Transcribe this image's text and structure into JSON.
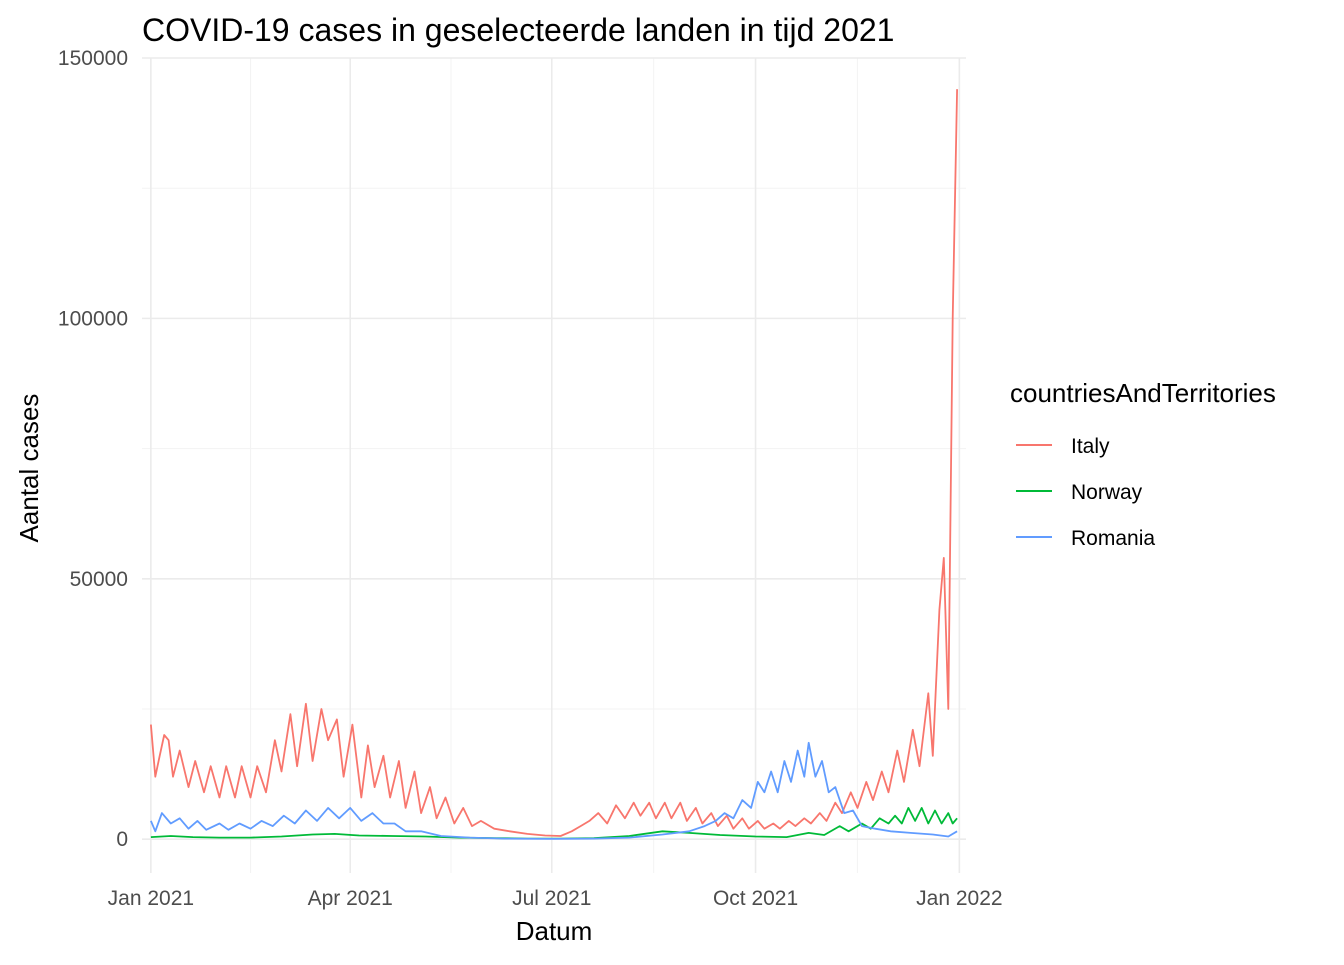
{
  "chart_data": {
    "type": "line",
    "title": "COVID-19 cases in geselecteerde landen in tijd 2021",
    "xlabel": "Datum",
    "ylabel": "Aantal cases",
    "xlim": [
      "2020-12-28",
      "2022-01-04"
    ],
    "ylim": [
      -6500,
      150000
    ],
    "x_ticks": [
      {
        "date": "2021-01-01",
        "label": "Jan 2021"
      },
      {
        "date": "2021-04-01",
        "label": "Apr 2021"
      },
      {
        "date": "2021-07-01",
        "label": "Jul 2021"
      },
      {
        "date": "2021-10-01",
        "label": "Oct 2021"
      },
      {
        "date": "2022-01-01",
        "label": "Jan 2022"
      }
    ],
    "y_ticks": [
      {
        "value": 0,
        "label": "0"
      },
      {
        "value": 50000,
        "label": "50000"
      },
      {
        "value": 100000,
        "label": "100000"
      },
      {
        "value": 150000,
        "label": "150000"
      }
    ],
    "grid": true,
    "legend": {
      "title": "countriesAndTerritories",
      "position": "right"
    },
    "series": [
      {
        "name": "Italy",
        "color": "#F8766D",
        "points": [
          [
            "2021-01-01",
            22000
          ],
          [
            "2021-01-03",
            12000
          ],
          [
            "2021-01-05",
            16000
          ],
          [
            "2021-01-07",
            20000
          ],
          [
            "2021-01-09",
            19000
          ],
          [
            "2021-01-11",
            12000
          ],
          [
            "2021-01-14",
            17000
          ],
          [
            "2021-01-18",
            10000
          ],
          [
            "2021-01-21",
            15000
          ],
          [
            "2021-01-25",
            9000
          ],
          [
            "2021-01-28",
            14000
          ],
          [
            "2021-02-01",
            8000
          ],
          [
            "2021-02-04",
            14000
          ],
          [
            "2021-02-08",
            8000
          ],
          [
            "2021-02-11",
            14000
          ],
          [
            "2021-02-15",
            8000
          ],
          [
            "2021-02-18",
            14000
          ],
          [
            "2021-02-22",
            9000
          ],
          [
            "2021-02-26",
            19000
          ],
          [
            "2021-03-01",
            13000
          ],
          [
            "2021-03-05",
            24000
          ],
          [
            "2021-03-08",
            14000
          ],
          [
            "2021-03-12",
            26000
          ],
          [
            "2021-03-15",
            15000
          ],
          [
            "2021-03-19",
            25000
          ],
          [
            "2021-03-22",
            19000
          ],
          [
            "2021-03-26",
            23000
          ],
          [
            "2021-03-29",
            12000
          ],
          [
            "2021-04-02",
            22000
          ],
          [
            "2021-04-06",
            8000
          ],
          [
            "2021-04-09",
            18000
          ],
          [
            "2021-04-12",
            10000
          ],
          [
            "2021-04-16",
            16000
          ],
          [
            "2021-04-19",
            8000
          ],
          [
            "2021-04-23",
            15000
          ],
          [
            "2021-04-26",
            6000
          ],
          [
            "2021-04-30",
            13000
          ],
          [
            "2021-05-03",
            5000
          ],
          [
            "2021-05-07",
            10000
          ],
          [
            "2021-05-10",
            4000
          ],
          [
            "2021-05-14",
            8000
          ],
          [
            "2021-05-18",
            3000
          ],
          [
            "2021-05-22",
            6000
          ],
          [
            "2021-05-26",
            2500
          ],
          [
            "2021-05-30",
            3500
          ],
          [
            "2021-06-05",
            2000
          ],
          [
            "2021-06-12",
            1500
          ],
          [
            "2021-06-20",
            1000
          ],
          [
            "2021-06-28",
            700
          ],
          [
            "2021-07-05",
            600
          ],
          [
            "2021-07-10",
            1500
          ],
          [
            "2021-07-14",
            2500
          ],
          [
            "2021-07-18",
            3500
          ],
          [
            "2021-07-22",
            5000
          ],
          [
            "2021-07-26",
            3000
          ],
          [
            "2021-07-30",
            6500
          ],
          [
            "2021-08-03",
            4000
          ],
          [
            "2021-08-07",
            7000
          ],
          [
            "2021-08-10",
            4500
          ],
          [
            "2021-08-14",
            7000
          ],
          [
            "2021-08-17",
            4000
          ],
          [
            "2021-08-21",
            7000
          ],
          [
            "2021-08-24",
            4000
          ],
          [
            "2021-08-28",
            7000
          ],
          [
            "2021-08-31",
            3500
          ],
          [
            "2021-09-04",
            6000
          ],
          [
            "2021-09-07",
            3000
          ],
          [
            "2021-09-11",
            5000
          ],
          [
            "2021-09-14",
            2500
          ],
          [
            "2021-09-18",
            4500
          ],
          [
            "2021-09-21",
            2000
          ],
          [
            "2021-09-25",
            4000
          ],
          [
            "2021-09-28",
            2000
          ],
          [
            "2021-10-02",
            3500
          ],
          [
            "2021-10-05",
            2000
          ],
          [
            "2021-10-09",
            3000
          ],
          [
            "2021-10-12",
            2000
          ],
          [
            "2021-10-16",
            3500
          ],
          [
            "2021-10-19",
            2500
          ],
          [
            "2021-10-23",
            4000
          ],
          [
            "2021-10-26",
            3000
          ],
          [
            "2021-10-30",
            5000
          ],
          [
            "2021-11-02",
            3500
          ],
          [
            "2021-11-06",
            7000
          ],
          [
            "2021-11-09",
            5000
          ],
          [
            "2021-11-13",
            9000
          ],
          [
            "2021-11-16",
            6000
          ],
          [
            "2021-11-20",
            11000
          ],
          [
            "2021-11-23",
            7500
          ],
          [
            "2021-11-27",
            13000
          ],
          [
            "2021-11-30",
            9000
          ],
          [
            "2021-12-04",
            17000
          ],
          [
            "2021-12-07",
            11000
          ],
          [
            "2021-12-11",
            21000
          ],
          [
            "2021-12-14",
            14000
          ],
          [
            "2021-12-18",
            28000
          ],
          [
            "2021-12-20",
            16000
          ],
          [
            "2021-12-23",
            44000
          ],
          [
            "2021-12-25",
            54000
          ],
          [
            "2021-12-27",
            25000
          ],
          [
            "2021-12-29",
            100000
          ],
          [
            "2021-12-31",
            144000
          ]
        ]
      },
      {
        "name": "Norway",
        "color": "#00BA38",
        "points": [
          [
            "2021-01-01",
            400
          ],
          [
            "2021-01-10",
            600
          ],
          [
            "2021-01-20",
            400
          ],
          [
            "2021-02-01",
            300
          ],
          [
            "2021-02-15",
            300
          ],
          [
            "2021-03-01",
            500
          ],
          [
            "2021-03-15",
            900
          ],
          [
            "2021-03-25",
            1000
          ],
          [
            "2021-04-05",
            700
          ],
          [
            "2021-04-20",
            600
          ],
          [
            "2021-05-05",
            500
          ],
          [
            "2021-05-20",
            300
          ],
          [
            "2021-06-05",
            200
          ],
          [
            "2021-06-20",
            100
          ],
          [
            "2021-07-05",
            100
          ],
          [
            "2021-07-20",
            200
          ],
          [
            "2021-08-05",
            600
          ],
          [
            "2021-08-20",
            1500
          ],
          [
            "2021-09-01",
            1200
          ],
          [
            "2021-09-15",
            800
          ],
          [
            "2021-10-01",
            500
          ],
          [
            "2021-10-15",
            400
          ],
          [
            "2021-10-25",
            1200
          ],
          [
            "2021-11-01",
            800
          ],
          [
            "2021-11-08",
            2500
          ],
          [
            "2021-11-12",
            1500
          ],
          [
            "2021-11-18",
            3000
          ],
          [
            "2021-11-22",
            2000
          ],
          [
            "2021-11-26",
            4000
          ],
          [
            "2021-11-30",
            3000
          ],
          [
            "2021-12-03",
            4500
          ],
          [
            "2021-12-06",
            3000
          ],
          [
            "2021-12-09",
            6000
          ],
          [
            "2021-12-12",
            3500
          ],
          [
            "2021-12-15",
            6000
          ],
          [
            "2021-12-18",
            3000
          ],
          [
            "2021-12-21",
            5500
          ],
          [
            "2021-12-24",
            3000
          ],
          [
            "2021-12-27",
            5000
          ],
          [
            "2021-12-29",
            3000
          ],
          [
            "2021-12-31",
            4000
          ]
        ]
      },
      {
        "name": "Romania",
        "color": "#619CFF",
        "points": [
          [
            "2021-01-01",
            3500
          ],
          [
            "2021-01-03",
            1500
          ],
          [
            "2021-01-06",
            5000
          ],
          [
            "2021-01-10",
            3000
          ],
          [
            "2021-01-14",
            4000
          ],
          [
            "2021-01-18",
            2000
          ],
          [
            "2021-01-22",
            3500
          ],
          [
            "2021-01-26",
            1800
          ],
          [
            "2021-02-01",
            3000
          ],
          [
            "2021-02-05",
            1800
          ],
          [
            "2021-02-10",
            3000
          ],
          [
            "2021-02-15",
            2000
          ],
          [
            "2021-02-20",
            3500
          ],
          [
            "2021-02-25",
            2500
          ],
          [
            "2021-03-02",
            4500
          ],
          [
            "2021-03-07",
            3000
          ],
          [
            "2021-03-12",
            5500
          ],
          [
            "2021-03-17",
            3500
          ],
          [
            "2021-03-22",
            6000
          ],
          [
            "2021-03-27",
            4000
          ],
          [
            "2021-04-01",
            6000
          ],
          [
            "2021-04-06",
            3500
          ],
          [
            "2021-04-11",
            5000
          ],
          [
            "2021-04-16",
            3000
          ],
          [
            "2021-04-21",
            3000
          ],
          [
            "2021-04-26",
            1500
          ],
          [
            "2021-05-03",
            1500
          ],
          [
            "2021-05-12",
            600
          ],
          [
            "2021-05-25",
            300
          ],
          [
            "2021-06-10",
            100
          ],
          [
            "2021-07-01",
            50
          ],
          [
            "2021-07-20",
            100
          ],
          [
            "2021-08-05",
            300
          ],
          [
            "2021-08-20",
            900
          ],
          [
            "2021-09-01",
            1500
          ],
          [
            "2021-09-08",
            2500
          ],
          [
            "2021-09-13",
            3500
          ],
          [
            "2021-09-17",
            5000
          ],
          [
            "2021-09-21",
            4000
          ],
          [
            "2021-09-25",
            7500
          ],
          [
            "2021-09-29",
            6000
          ],
          [
            "2021-10-02",
            11000
          ],
          [
            "2021-10-05",
            9000
          ],
          [
            "2021-10-08",
            13000
          ],
          [
            "2021-10-11",
            9000
          ],
          [
            "2021-10-14",
            15000
          ],
          [
            "2021-10-17",
            11000
          ],
          [
            "2021-10-20",
            17000
          ],
          [
            "2021-10-23",
            12000
          ],
          [
            "2021-10-25",
            18500
          ],
          [
            "2021-10-28",
            12000
          ],
          [
            "2021-10-31",
            15000
          ],
          [
            "2021-11-03",
            9000
          ],
          [
            "2021-11-06",
            10000
          ],
          [
            "2021-11-10",
            5000
          ],
          [
            "2021-11-14",
            5500
          ],
          [
            "2021-11-18",
            2500
          ],
          [
            "2021-11-24",
            2000
          ],
          [
            "2021-12-01",
            1500
          ],
          [
            "2021-12-10",
            1200
          ],
          [
            "2021-12-20",
            900
          ],
          [
            "2021-12-27",
            500
          ],
          [
            "2021-12-31",
            1500
          ]
        ]
      }
    ]
  }
}
